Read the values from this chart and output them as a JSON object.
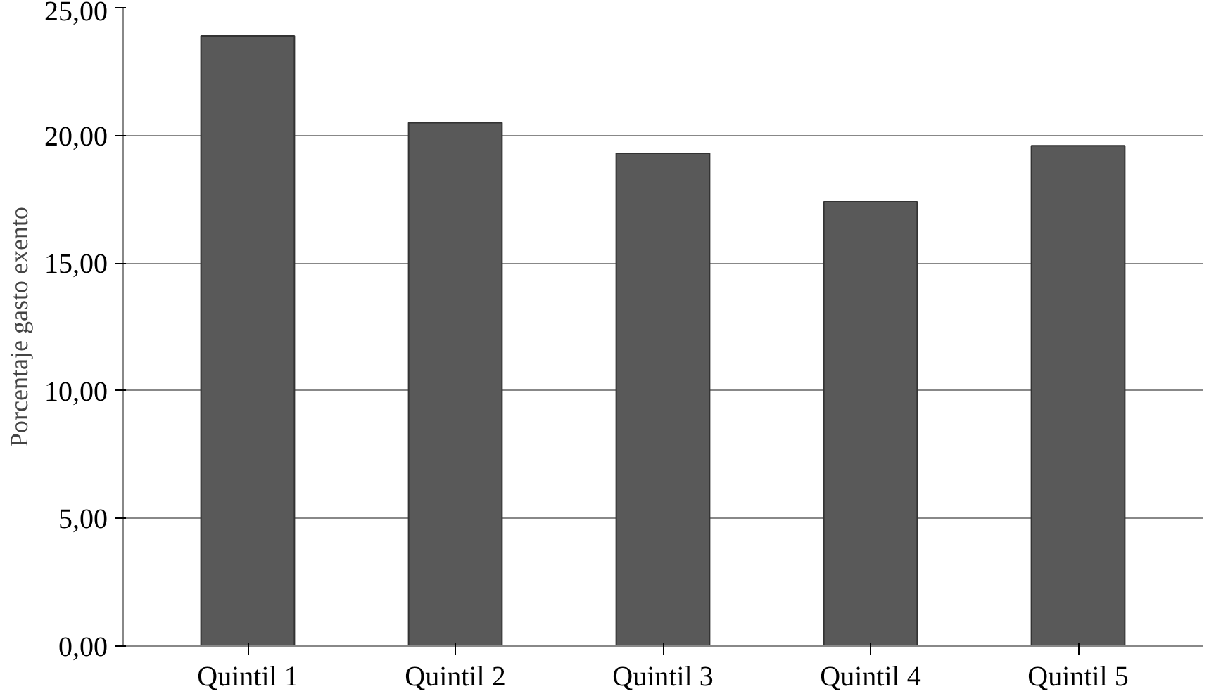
{
  "chart_data": {
    "type": "bar",
    "ylabel": "Porcentaje gasto exento",
    "categories": [
      "Quintil 1",
      "Quintil 2",
      "Quintil 3",
      "Quintil 4",
      "Quintil 5"
    ],
    "values": [
      23.9,
      20.5,
      19.3,
      17.4,
      19.6
    ],
    "color": "#595959",
    "ylim": [
      0,
      25
    ],
    "yticks": [
      {
        "value": 0,
        "label": "0,00"
      },
      {
        "value": 5,
        "label": "5,00"
      },
      {
        "value": 10,
        "label": "10,00"
      },
      {
        "value": 15,
        "label": "15,00"
      },
      {
        "value": 20,
        "label": "20,00"
      },
      {
        "value": 25,
        "label": "25,00"
      }
    ],
    "grid": "y"
  }
}
